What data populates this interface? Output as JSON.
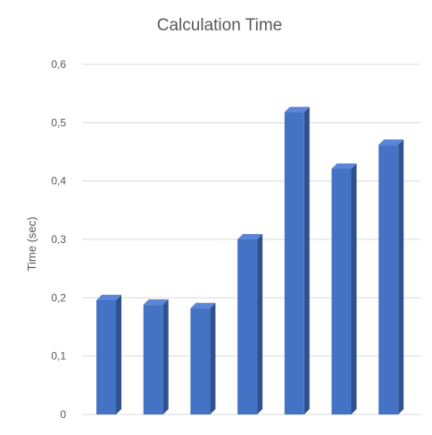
{
  "chart_data": {
    "type": "bar",
    "title": "Calculation Time",
    "xlabel": "",
    "ylabel": "Time (sec)",
    "categories": [
      "",
      "",
      "",
      "",
      "",
      "",
      ""
    ],
    "values": [
      0.196,
      0.188,
      0.182,
      0.3,
      0.518,
      0.421,
      0.462
    ],
    "ylim": [
      0,
      0.6
    ],
    "yticks": [
      0,
      0.1,
      0.2,
      0.3,
      0.4,
      0.5,
      0.6
    ],
    "ytick_labels": [
      "0",
      "0,1",
      "0,2",
      "0,3",
      "0,4",
      "0,5",
      "0,6"
    ],
    "grid": true,
    "bar_style": "3d",
    "colors": {
      "bar_front": "#4472c4",
      "bar_side": "#2f528f",
      "bar_top": "#5b85d6",
      "grid": "#d9d9d9",
      "text": "#595959"
    }
  }
}
